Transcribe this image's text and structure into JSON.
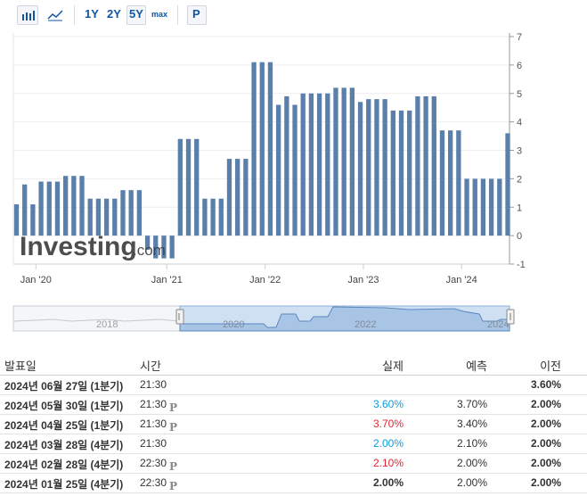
{
  "toolbar": {
    "bar_icon": "bar-chart-icon",
    "line_icon": "line-chart-icon",
    "ranges": [
      "1Y",
      "2Y",
      "5Y",
      "max"
    ],
    "selected_range": "5Y",
    "p_button": "P"
  },
  "chart_data": {
    "type": "bar",
    "watermark": "Investing.com",
    "x_tick_labels": [
      "Jan '20",
      "Jan '21",
      "Jan '22",
      "Jan '23",
      "Jan '24"
    ],
    "y_ticks": [
      -1,
      0,
      1,
      2,
      3,
      4,
      5,
      6,
      7
    ],
    "ylim": [
      -1,
      7
    ],
    "bar_color": "#5a7fab",
    "values": [
      1.1,
      1.8,
      1.1,
      1.9,
      1.9,
      1.9,
      2.1,
      2.1,
      2.1,
      1.3,
      1.3,
      1.3,
      1.3,
      1.6,
      1.6,
      1.6,
      -0.5,
      -0.8,
      -0.8,
      -0.8,
      3.4,
      3.4,
      3.4,
      1.3,
      1.3,
      1.3,
      2.7,
      2.7,
      2.7,
      6.1,
      6.1,
      6.1,
      4.6,
      4.9,
      4.6,
      5.0,
      5.0,
      5.0,
      5.0,
      5.2,
      5.2,
      5.2,
      4.7,
      4.8,
      4.8,
      4.8,
      4.4,
      4.4,
      4.4,
      4.9,
      4.9,
      4.9,
      3.7,
      3.7,
      3.7,
      2.0,
      2.0,
      2.0,
      2.0,
      2.0,
      3.6
    ],
    "navigator_year_labels": [
      "2018",
      "2020",
      "2022",
      "2024"
    ]
  },
  "table": {
    "headers": {
      "date": "발표일",
      "time": "시간",
      "actual": "실제",
      "forecast": "예측",
      "previous": "이전"
    },
    "rows": [
      {
        "date": "2024년 06월 27일 (1분기)",
        "time": "21:30",
        "p": "",
        "actual": "",
        "actual_color": "#333333",
        "forecast": "",
        "previous": "3.60%"
      },
      {
        "date": "2024년 05월 30일 (1분기)",
        "time": "21:30",
        "p": "P",
        "actual": "3.60%",
        "actual_color": "#0e9ad8",
        "forecast": "3.70%",
        "previous": "2.00%"
      },
      {
        "date": "2024년 04월 25일 (1분기)",
        "time": "21:30",
        "p": "P",
        "actual": "3.70%",
        "actual_color": "#e0262f",
        "forecast": "3.40%",
        "previous": "2.00%"
      },
      {
        "date": "2024년 03월 28일 (4분기)",
        "time": "21:30",
        "p": "",
        "actual": "2.00%",
        "actual_color": "#0e9ad8",
        "forecast": "2.10%",
        "previous": "2.00%"
      },
      {
        "date": "2024년 02월 28일 (4분기)",
        "time": "22:30",
        "p": "P",
        "actual": "2.10%",
        "actual_color": "#e0262f",
        "forecast": "2.00%",
        "previous": "2.00%"
      },
      {
        "date": "2024년 01월 25일 (4분기)",
        "time": "22:30",
        "p": "P",
        "actual": "2.00%",
        "actual_color": "#333333",
        "forecast": "2.00%",
        "previous": "2.00%"
      }
    ]
  }
}
